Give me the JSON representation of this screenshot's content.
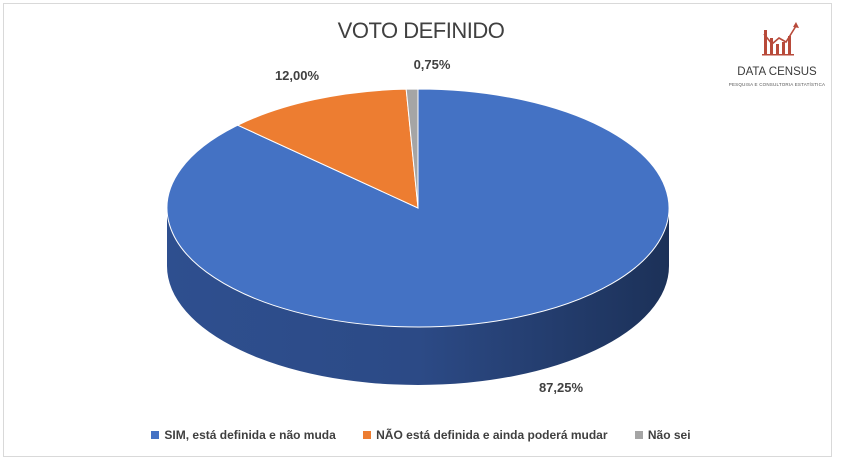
{
  "chart_data": {
    "type": "pie",
    "title": "VOTO DEFINIDO",
    "categories": [
      "SIM, está definida e não muda",
      "NÃO está definida e ainda poderá mudar",
      "Não sei"
    ],
    "values": [
      87.25,
      12.0,
      0.75
    ],
    "data_labels": [
      "87,25%",
      "12,00%",
      "0,75%"
    ],
    "colors": [
      "#4472C4",
      "#ED7D31",
      "#A5A5A5"
    ],
    "legend_position": "bottom",
    "style": "3d"
  },
  "logo": {
    "name": "DATA CENSUS",
    "tagline": "PESQUISA E CONSULTORIA ESTATÍSTICA"
  }
}
